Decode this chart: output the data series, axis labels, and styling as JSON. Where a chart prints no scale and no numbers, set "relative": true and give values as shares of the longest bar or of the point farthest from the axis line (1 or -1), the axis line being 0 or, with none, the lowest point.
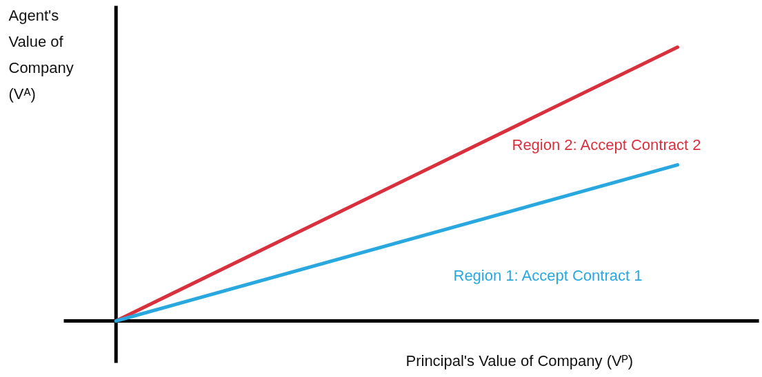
{
  "chart_data": {
    "type": "line",
    "relative": true,
    "categories": [
      null,
      null
    ],
    "series": [
      {
        "color": "#d9303e",
        "values": [
          0,
          1
        ]
      },
      {
        "color": "#29a8e0",
        "values": [
          0,
          0.57
        ]
      }
    ],
    "xlabel": "Principal's Value of Company  (Vᴾ)",
    "ylabel": "Agent's Value of Company (Vᴬ)",
    "annotations": [
      "Region 2: Accept Contract 2",
      "Region 1: Accept Contract 1"
    ],
    "grid": false,
    "marker": "none",
    "line_style": "solid",
    "tick_labels": false
  }
}
